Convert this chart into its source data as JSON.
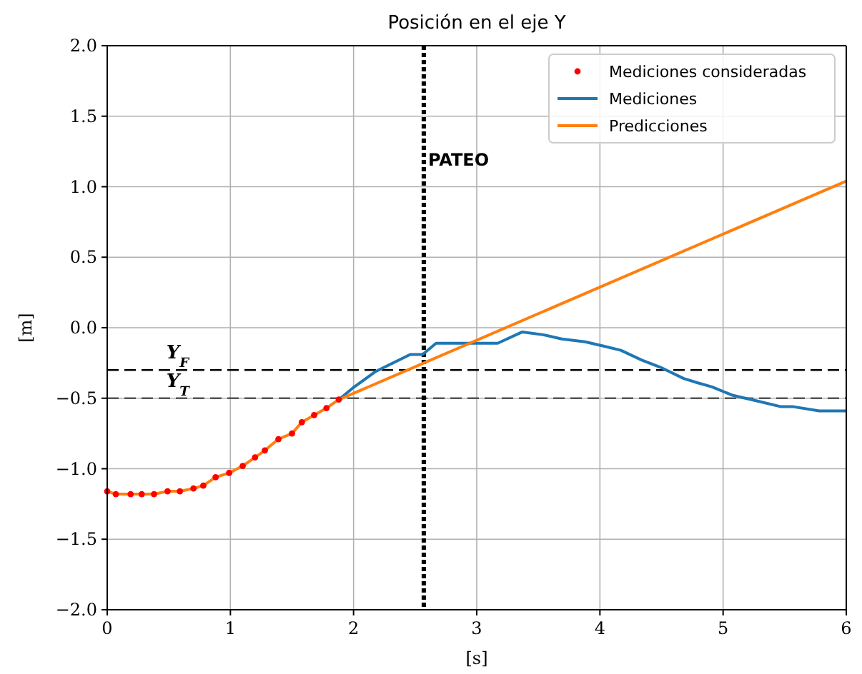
{
  "chart_data": {
    "type": "line",
    "title": "Posición en el eje Y",
    "xlabel": "[s]",
    "ylabel": "[m]",
    "xlim": [
      0,
      6
    ],
    "xticks": [
      0,
      1,
      2,
      3,
      4,
      5,
      6
    ],
    "ylim": [
      -2,
      2
    ],
    "yticks": [
      {
        "value": -2,
        "label": "−2.0"
      },
      {
        "value": -1.5,
        "label": "−1.5"
      },
      {
        "value": -1,
        "label": "−1.0"
      },
      {
        "value": -0.5,
        "label": "−0.5"
      },
      {
        "value": 0,
        "label": "0.0"
      },
      {
        "value": 0.5,
        "label": "0.5"
      },
      {
        "value": 1,
        "label": "1.0"
      },
      {
        "value": 1.5,
        "label": "1.5"
      },
      {
        "value": 2,
        "label": "2.0"
      }
    ],
    "grid": true,
    "legend": "top right",
    "series": [
      {
        "name": "Mediciones consideradas",
        "type": "scatter",
        "marker": "circle",
        "color": "#ff0000",
        "x": [
          0,
          0.07,
          0.19,
          0.28,
          0.38,
          0.49,
          0.59,
          0.7,
          0.78,
          0.88,
          0.99,
          1.1,
          1.2,
          1.28,
          1.39,
          1.5,
          1.58,
          1.68,
          1.78,
          1.88
        ],
        "values": [
          -1.16,
          -1.18,
          -1.18,
          -1.18,
          -1.18,
          -1.16,
          -1.16,
          -1.14,
          -1.12,
          -1.06,
          -1.03,
          -0.98,
          -0.92,
          -0.87,
          -0.79,
          -0.75,
          -0.67,
          -0.62,
          -0.57,
          -0.51
        ]
      },
      {
        "name": "Mediciones",
        "color": "#1f77b4",
        "x": [
          1.88,
          1.99,
          2.18,
          2.46,
          2.56,
          2.67,
          3.17,
          3.37,
          3.54,
          3.69,
          3.88,
          4.03,
          4.17,
          4.34,
          4.49,
          4.68,
          4.79,
          4.91,
          5.08,
          5.28,
          5.47,
          5.57,
          5.78,
          6
        ],
        "values": [
          -0.51,
          -0.43,
          -0.31,
          -0.19,
          -0.19,
          -0.11,
          -0.11,
          -0.03,
          -0.05,
          -0.08,
          -0.1,
          -0.13,
          -0.16,
          -0.23,
          -0.28,
          -0.36,
          -0.39,
          -0.42,
          -0.48,
          -0.52,
          -0.56,
          -0.56,
          -0.59,
          -0.59
        ]
      },
      {
        "name": "Predicciones",
        "color": "#ff7f0e",
        "x": [
          0,
          0.07,
          0.19,
          0.28,
          0.38,
          0.49,
          0.59,
          0.7,
          0.78,
          0.88,
          0.99,
          1.1,
          1.2,
          1.28,
          1.39,
          1.5,
          1.58,
          1.68,
          1.78,
          1.88,
          6
        ],
        "values": [
          -1.16,
          -1.18,
          -1.18,
          -1.18,
          -1.18,
          -1.16,
          -1.16,
          -1.14,
          -1.12,
          -1.06,
          -1.03,
          -0.98,
          -0.92,
          -0.87,
          -0.79,
          -0.75,
          -0.67,
          -0.62,
          -0.57,
          -0.51,
          1.04
        ]
      }
    ],
    "ref_lines": [
      {
        "axis": "y",
        "value": -0.3,
        "label": "Y$_{F}$",
        "color": "#000000",
        "line_style": "dashed"
      },
      {
        "axis": "y",
        "value": -0.5,
        "label": "Y$_{T}$",
        "color": "#555555",
        "line_style": "dashed"
      },
      {
        "axis": "x",
        "value": 2.57,
        "label": "PATEO",
        "color": "#000000",
        "line_style": "dotted"
      }
    ]
  }
}
